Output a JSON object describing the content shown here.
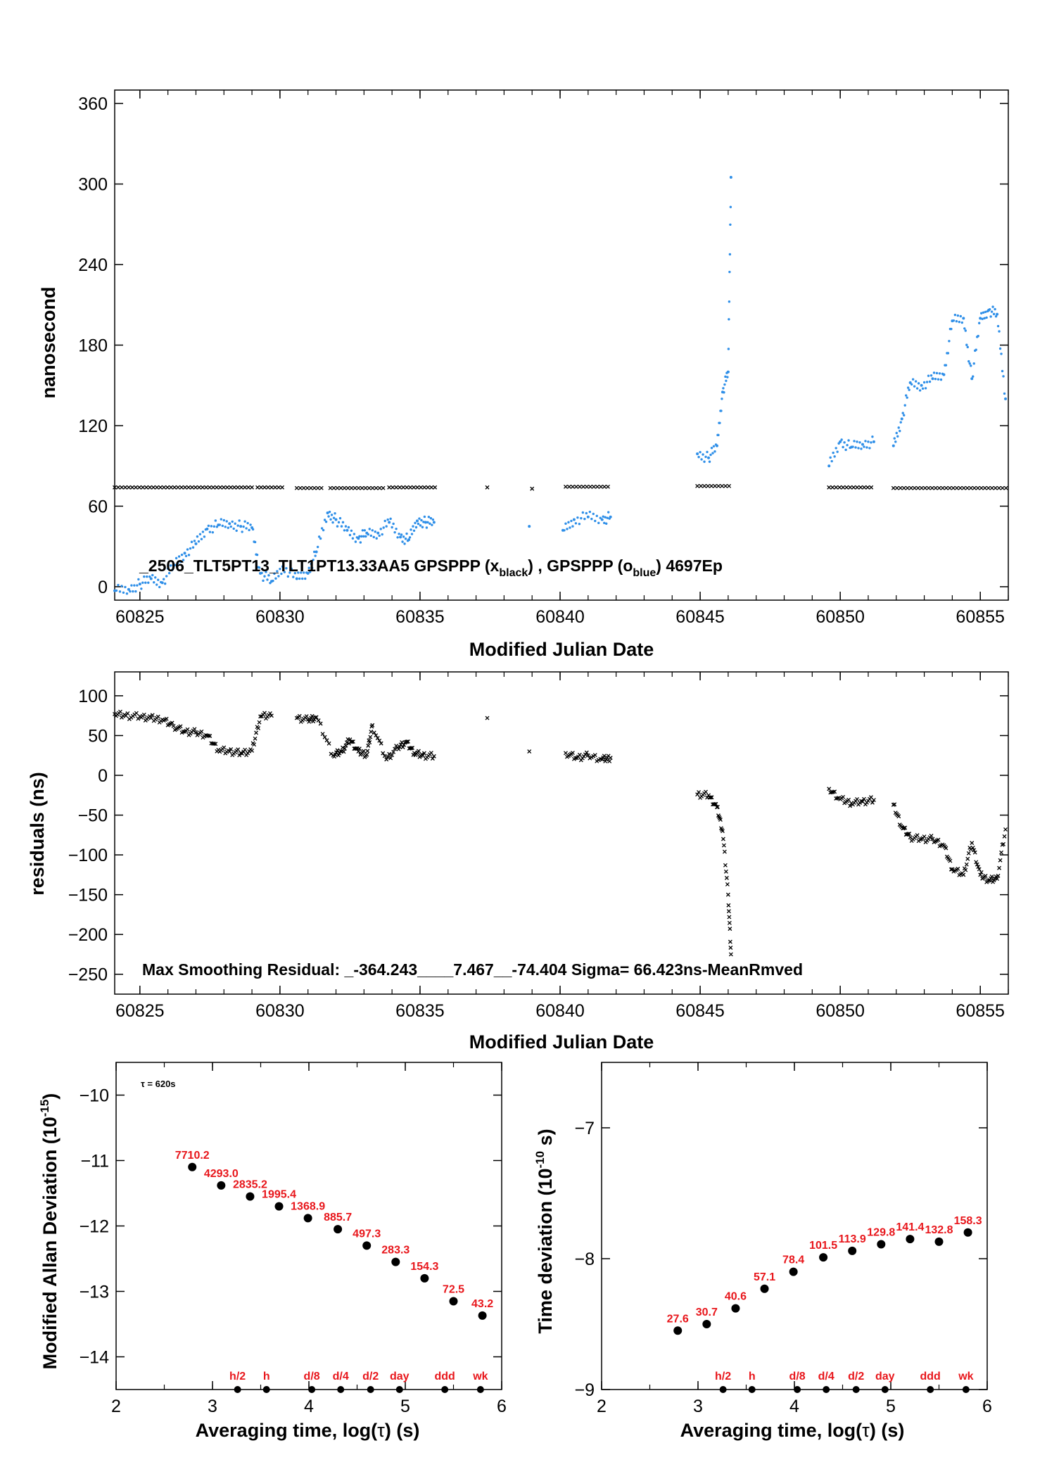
{
  "colors": {
    "black_series": "#000000",
    "blue_series": "#2f8fe8",
    "annotation": "#e8161b",
    "axis": "#000000"
  },
  "chart_data": [
    {
      "id": "phase",
      "type": "scatter",
      "xlabel": "Modified Julian Date",
      "ylabel": "nanosecond",
      "xlim": [
        60824.1,
        60856.0
      ],
      "ylim": [
        -10,
        370
      ],
      "xticks": [
        60825,
        60830,
        60835,
        60840,
        60845,
        60850,
        60855
      ],
      "yticks": [
        0,
        60,
        120,
        180,
        240,
        300,
        360
      ],
      "annotation_parts": {
        "prefix": "_2506_TLT5PT13_TLT1PT13.33AA5     GPSPPP (x",
        "sub1": "black",
        "mid": ") ,  GPSPPP (o",
        "sub2": "blue",
        "suffix": ")  4697Ep"
      },
      "series": [
        {
          "name": "GPSPPP (x black)",
          "color": "#000000",
          "marker": "x",
          "segments": [
            [
              60824.1,
              60829.0,
              74
            ],
            [
              60829.2,
              60830.1,
              74
            ],
            [
              60830.6,
              60831.5,
              73.5
            ],
            [
              60831.8,
              60833.7,
              73.5
            ],
            [
              60833.9,
              60835.6,
              74
            ],
            [
              60837.4,
              60837.5,
              74
            ],
            [
              60839.0,
              60839.1,
              73
            ],
            [
              60840.2,
              60841.8,
              74.5
            ],
            [
              60844.9,
              60846.1,
              75
            ],
            [
              60849.6,
              60851.2,
              74
            ],
            [
              60851.9,
              60856.0,
              73.5
            ]
          ]
        },
        {
          "name": "GPSPPP (o blue)",
          "color": "#2f8fe8",
          "marker": "o",
          "points": [
            [
              60824.1,
              -3
            ],
            [
              60824.6,
              -2
            ],
            [
              60825.0,
              2
            ],
            [
              60825.4,
              6
            ],
            [
              60825.8,
              3
            ],
            [
              60826.2,
              16
            ],
            [
              60826.6,
              25
            ],
            [
              60827.0,
              32
            ],
            [
              60827.4,
              43
            ],
            [
              60827.8,
              46
            ],
            [
              60828.2,
              47
            ],
            [
              60828.6,
              45
            ],
            [
              60829.0,
              44
            ],
            [
              60829.3,
              10
            ],
            [
              60829.7,
              4
            ],
            [
              60830.1,
              15
            ],
            [
              60830.6,
              6
            ],
            [
              60831.0,
              10
            ],
            [
              60831.3,
              26
            ],
            [
              60831.7,
              55
            ],
            [
              60832.0,
              50
            ],
            [
              60832.4,
              42
            ],
            [
              60832.8,
              36
            ],
            [
              60833.1,
              40
            ],
            [
              60833.5,
              40
            ],
            [
              60833.9,
              48
            ],
            [
              60834.3,
              37
            ],
            [
              60834.6,
              35
            ],
            [
              60834.9,
              49
            ],
            [
              60835.2,
              48
            ],
            [
              60835.5,
              48
            ],
            [
              60838.9,
              45
            ],
            [
              60840.1,
              42
            ],
            [
              60840.5,
              50
            ],
            [
              60841.0,
              52
            ],
            [
              60841.5,
              50
            ],
            [
              60841.8,
              52
            ],
            [
              60844.9,
              99
            ],
            [
              60845.3,
              96
            ],
            [
              60845.6,
              105
            ],
            [
              60845.8,
              145
            ],
            [
              60846.0,
              160
            ],
            [
              60846.1,
              305
            ],
            [
              60849.6,
              90
            ],
            [
              60850.0,
              108
            ],
            [
              60850.4,
              104
            ],
            [
              60850.8,
              106
            ],
            [
              60851.2,
              108
            ],
            [
              60851.9,
              105
            ],
            [
              60852.2,
              125
            ],
            [
              60852.5,
              152
            ],
            [
              60852.9,
              150
            ],
            [
              60853.3,
              155
            ],
            [
              60853.7,
              158
            ],
            [
              60854.0,
              198
            ],
            [
              60854.4,
              200
            ],
            [
              60854.7,
              155
            ],
            [
              60855.0,
              200
            ],
            [
              60855.3,
              206
            ],
            [
              60855.6,
              203
            ],
            [
              60855.9,
              140
            ]
          ]
        }
      ]
    },
    {
      "id": "residuals",
      "type": "scatter",
      "xlabel": "Modified Julian Date",
      "ylabel": "residuals (ns)",
      "xlim": [
        60824.1,
        60856.0
      ],
      "ylim": [
        -275,
        130
      ],
      "xticks": [
        60825,
        60830,
        60835,
        60840,
        60845,
        60850,
        60855
      ],
      "yticks": [
        100,
        50,
        0,
        -50,
        -100,
        -150,
        -200,
        -250
      ],
      "ytick_labels": [
        "100",
        "50",
        "0",
        "−50",
        "−100",
        "−150",
        "−200",
        "−250"
      ],
      "annotation": "Max Smoothing Residual: _-364.243____7.467__-74.404  Sigma= 66.423ns-MeanRmved",
      "series": [
        {
          "name": "residuals",
          "color": "#000000",
          "marker": "x",
          "points": [
            [
              60824.1,
              77
            ],
            [
              60824.5,
              75
            ],
            [
              60825.0,
              74
            ],
            [
              60825.4,
              72
            ],
            [
              60825.8,
              70
            ],
            [
              60826.2,
              62
            ],
            [
              60826.6,
              55
            ],
            [
              60827.0,
              54
            ],
            [
              60827.4,
              50
            ],
            [
              60827.8,
              32
            ],
            [
              60828.2,
              30
            ],
            [
              60828.6,
              28
            ],
            [
              60829.0,
              31
            ],
            [
              60829.3,
              74
            ],
            [
              60829.7,
              75
            ],
            [
              60830.6,
              72
            ],
            [
              60831.0,
              70
            ],
            [
              60831.3,
              73
            ],
            [
              60831.9,
              25
            ],
            [
              60832.2,
              30
            ],
            [
              60832.5,
              45
            ],
            [
              60832.8,
              30
            ],
            [
              60833.1,
              26
            ],
            [
              60833.3,
              63
            ],
            [
              60833.8,
              20
            ],
            [
              60834.2,
              35
            ],
            [
              60834.5,
              42
            ],
            [
              60834.8,
              28
            ],
            [
              60835.1,
              25
            ],
            [
              60835.5,
              24
            ],
            [
              60837.4,
              72
            ],
            [
              60838.9,
              30
            ],
            [
              60840.2,
              28
            ],
            [
              60840.6,
              22
            ],
            [
              60841.0,
              25
            ],
            [
              60841.5,
              20
            ],
            [
              60841.8,
              22
            ],
            [
              60844.9,
              -24
            ],
            [
              60845.3,
              -25
            ],
            [
              60845.6,
              -40
            ],
            [
              60845.8,
              -70
            ],
            [
              60846.0,
              -150
            ],
            [
              60846.1,
              -225
            ],
            [
              60849.6,
              -17
            ],
            [
              60850.0,
              -30
            ],
            [
              60850.4,
              -35
            ],
            [
              60850.8,
              -33
            ],
            [
              60851.2,
              -31
            ],
            [
              60851.9,
              -37
            ],
            [
              60852.2,
              -65
            ],
            [
              60852.5,
              -78
            ],
            [
              60852.9,
              -80
            ],
            [
              60853.3,
              -80
            ],
            [
              60853.7,
              -88
            ],
            [
              60854.0,
              -118
            ],
            [
              60854.4,
              -125
            ],
            [
              60854.7,
              -85
            ],
            [
              60855.0,
              -125
            ],
            [
              60855.3,
              -132
            ],
            [
              60855.6,
              -130
            ],
            [
              60855.9,
              -68
            ]
          ]
        }
      ]
    },
    {
      "id": "mdev",
      "type": "scatter",
      "xlabel_parts": {
        "pre": "Averaging time, log(",
        "tau": "τ",
        "post": ") (s)"
      },
      "ylabel_parts": {
        "pre": "Modified Allan Deviation (10",
        "sup": "-15",
        "post": ")"
      },
      "xlim": [
        2,
        6
      ],
      "ylim": [
        -14.5,
        -9.5
      ],
      "xticks": [
        2,
        3,
        4,
        5,
        6
      ],
      "yticks": [
        -10,
        -11,
        -12,
        -13,
        -14
      ],
      "ytick_labels": [
        "−10",
        "−11",
        "−12",
        "−13",
        "−14"
      ],
      "note": "τ = 620s",
      "points": [
        [
          2.79,
          -11.1
        ],
        [
          3.09,
          -11.38
        ],
        [
          3.39,
          -11.55
        ],
        [
          3.69,
          -11.7
        ],
        [
          3.99,
          -11.88
        ],
        [
          4.3,
          -12.05
        ],
        [
          4.6,
          -12.3
        ],
        [
          4.9,
          -12.55
        ],
        [
          5.2,
          -12.8
        ],
        [
          5.5,
          -13.15
        ],
        [
          5.8,
          -13.37
        ]
      ],
      "point_labels": [
        "7710.2",
        "4293.0",
        "2835.2",
        "1995.4",
        "1368.9",
        "885.7",
        "497.3",
        "283.3",
        "154.3",
        "72.5",
        "43.2"
      ],
      "markers": [
        {
          "label": "h/2",
          "x": 3.26
        },
        {
          "label": "h",
          "x": 3.56
        },
        {
          "label": "d/8",
          "x": 4.03
        },
        {
          "label": "d/4",
          "x": 4.33
        },
        {
          "label": "d/2",
          "x": 4.64
        },
        {
          "label": "day",
          "x": 4.94
        },
        {
          "label": "ddd",
          "x": 5.41
        },
        {
          "label": "wk",
          "x": 5.78
        }
      ]
    },
    {
      "id": "tdev",
      "type": "scatter",
      "xlabel_parts": {
        "pre": "Averaging time, log(",
        "tau": "τ",
        "post": ") (s)"
      },
      "ylabel_parts": {
        "pre": "Time deviation (10",
        "sup": "-10",
        "post": " s)"
      },
      "xlim": [
        2,
        6
      ],
      "ylim": [
        -9.0,
        -6.5
      ],
      "xticks": [
        2,
        3,
        4,
        5,
        6
      ],
      "yticks": [
        -7,
        -8,
        -9
      ],
      "ytick_labels": [
        "−7",
        "−8",
        "−9"
      ],
      "points": [
        [
          2.79,
          -8.55
        ],
        [
          3.09,
          -8.5
        ],
        [
          3.39,
          -8.38
        ],
        [
          3.69,
          -8.23
        ],
        [
          3.99,
          -8.1
        ],
        [
          4.3,
          -7.99
        ],
        [
          4.6,
          -7.94
        ],
        [
          4.9,
          -7.89
        ],
        [
          5.2,
          -7.85
        ],
        [
          5.5,
          -7.87
        ],
        [
          5.8,
          -7.8
        ]
      ],
      "point_labels": [
        "27.6",
        "30.7",
        "40.6",
        "57.1",
        "78.4",
        "101.5",
        "113.9",
        "129.8",
        "141.4",
        "132.8",
        "158.3"
      ],
      "markers": [
        {
          "label": "h/2",
          "x": 3.26
        },
        {
          "label": "h",
          "x": 3.56
        },
        {
          "label": "d/8",
          "x": 4.03
        },
        {
          "label": "d/4",
          "x": 4.33
        },
        {
          "label": "d/2",
          "x": 4.64
        },
        {
          "label": "day",
          "x": 4.94
        },
        {
          "label": "ddd",
          "x": 5.41
        },
        {
          "label": "wk",
          "x": 5.78
        }
      ]
    }
  ]
}
